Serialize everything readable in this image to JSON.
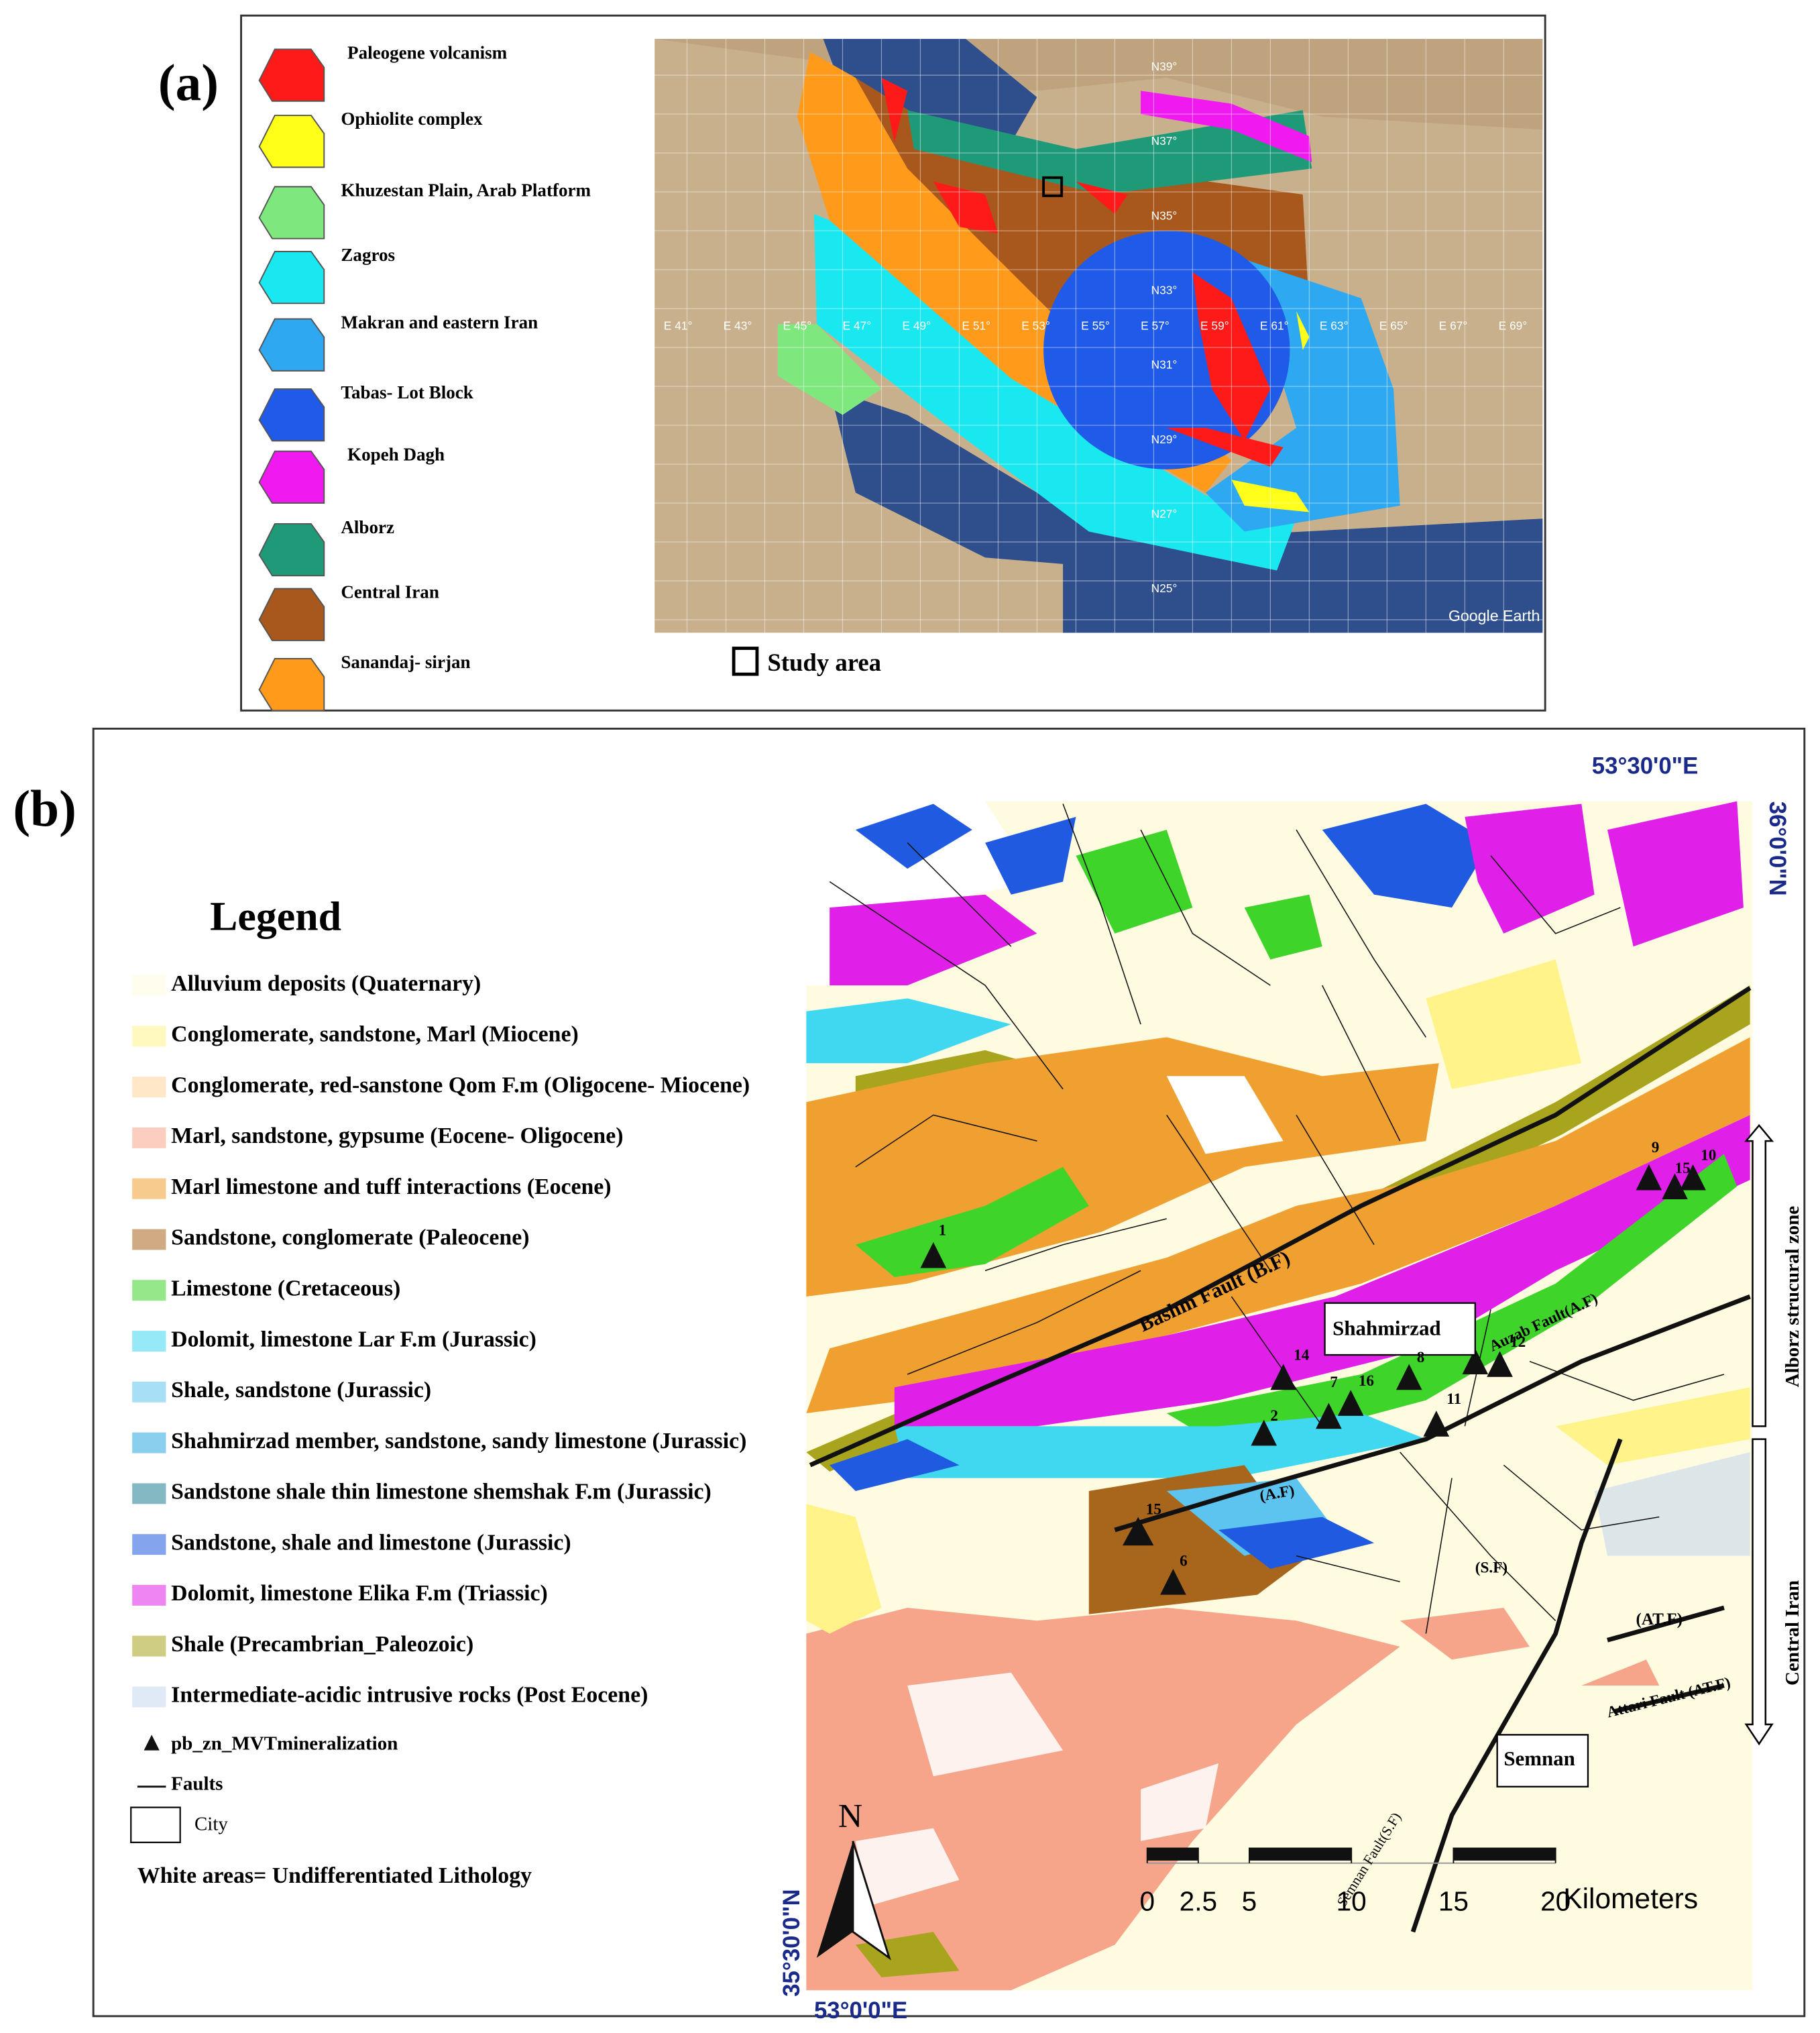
{
  "panel_a": {
    "label": "(a)",
    "legend": [
      {
        "name": "Paleogene volcanism",
        "color": "#ff1a1a"
      },
      {
        "name": "Ophiolite complex",
        "color": "#ffff1a"
      },
      {
        "name": "Khuzestan Plain, Arab Platform",
        "color": "#7ee87e"
      },
      {
        "name": "Zagros",
        "color": "#1ae8f0"
      },
      {
        "name": "Makran and eastern Iran",
        "color": "#2ea8f0"
      },
      {
        "name": "Tabas- Lot Block",
        "color": "#1f5ae8"
      },
      {
        "name": "Kopeh Dagh",
        "color": "#f01af0"
      },
      {
        "name": "Alborz",
        "color": "#1f9a78"
      },
      {
        "name": "Central Iran",
        "color": "#a8581c"
      },
      {
        "name": "Sanandaj- sirjan",
        "color": "#ff9a1a"
      }
    ],
    "study_area": "Study area",
    "lat_labels": [
      "N39°",
      "N37°",
      "N35°",
      "N33°",
      "N31°",
      "N29°",
      "N27°",
      "N25°"
    ],
    "lon_labels": [
      "E 41°",
      "E 43°",
      "E 45°",
      "E 47°",
      "E 49°",
      "E 51°",
      "E 53°",
      "E 55°",
      "E 57°",
      "E 59°",
      "E 61°",
      "E 63°",
      "E 65°",
      "E 67°",
      "E 69°"
    ],
    "credit": "Google Earth"
  },
  "panel_b": {
    "label": "(b)",
    "legend_title": "Legend",
    "legend": [
      {
        "name": "Alluvium deposits (Quaternary)",
        "color": "#fffbe0"
      },
      {
        "name": "Conglomerate, sandstone, Marl (Miocene)",
        "color": "#fff38a"
      },
      {
        "name": "Conglomerate, red-sanstone Qom F.m (Oligocene- Miocene)",
        "color": "#ffd49a"
      },
      {
        "name": "Marl, sandstone, gypsume (Eocene- Oligocene)",
        "color": "#f7a58a"
      },
      {
        "name": "Marl limestone and tuff interactions (Eocene)",
        "color": "#f0a030"
      },
      {
        "name": "Sandstone, conglomerate (Paleocene)",
        "color": "#a8651c"
      },
      {
        "name": "Limestone (Cretaceous)",
        "color": "#3fd42a"
      },
      {
        "name": "Dolomit, limestone Lar F.m (Jurassic)",
        "color": "#3fd8f0"
      },
      {
        "name": "Shale, sandstone (Jurassic)",
        "color": "#5cc4ee"
      },
      {
        "name": "Shahmirzad member, sandstone, sandy limestone (Jurassic)",
        "color": "#2aa8e0"
      },
      {
        "name": "Sandstone shale thin limestone shemshak F.m (Jurassic)",
        "color": "#1f7d8f"
      },
      {
        "name": "Sandstone, shale and limestone (Jurassic)",
        "color": "#1f5ae0"
      },
      {
        "name": "Dolomit, limestone Elika F.m (Triassic)",
        "color": "#e020e8"
      },
      {
        "name": "Shale (Precambrian_Paleozoic)",
        "color": "#a8a41e"
      },
      {
        "name": "Intermediate-acidic intrusive rocks (Post Eocene)",
        "color": "#c4d8ee"
      }
    ],
    "symbols": [
      "pb_zn_MVTmineralization",
      "Faults",
      "City"
    ],
    "note": "White areas= Undifferentiated Lithology",
    "coords": [
      "53°30'0\"E",
      "36°0'0\"N",
      "35°30'0\"N",
      "53°0'0\"E"
    ],
    "north": "N",
    "scale": {
      "ticks": [
        0,
        2.5,
        5,
        10,
        15,
        20
      ],
      "unit": "Kilometers"
    },
    "map_labels": [
      "Bashm Fault (B.F)",
      "Shahmirzad",
      "Auzab Fault(A.F)",
      "(A.F)",
      "(S.F)",
      "(AT.F)",
      "Attari Fault (AT.F)",
      "Semnan",
      "Semnan Fault(S.F)"
    ],
    "sites": [
      "1",
      "9",
      "15",
      "10",
      "14",
      "8",
      "12",
      "7",
      "16",
      "2",
      "11",
      "15",
      "6"
    ],
    "zones": [
      "Alborz strucural zone",
      "Central Iran"
    ]
  }
}
